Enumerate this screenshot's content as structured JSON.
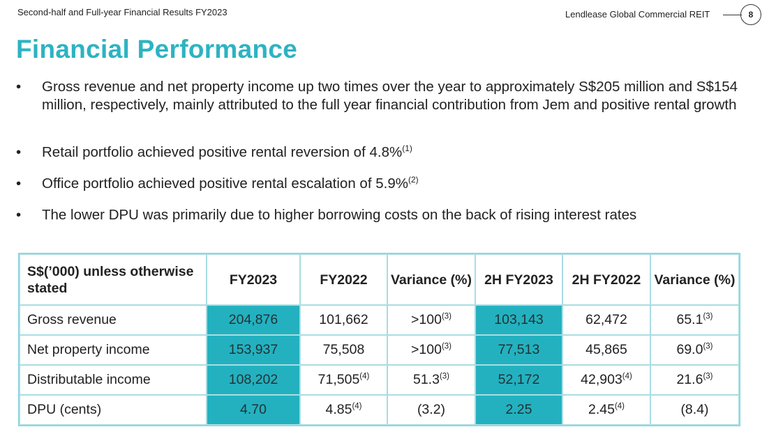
{
  "header": {
    "doc_title": "Second-half and Full-year Financial Results FY2023",
    "company": "Lendlease Global Commercial REIT",
    "page_number": "8"
  },
  "title": "Financial Performance",
  "bullets": [
    {
      "text": "Gross revenue and net property income up two times over the year to approximately S$205 million and S$154 million, respectively, mainly attributed to the full year financial contribution from Jem and positive rental growth",
      "footnote": ""
    },
    {
      "text": "Retail portfolio achieved positive rental reversion of 4.8%",
      "footnote": "(1)"
    },
    {
      "text": "Office portfolio achieved positive rental escalation of 5.9%",
      "footnote": "(2)"
    },
    {
      "text": "The lower DPU was primarily due to higher borrowing costs on the back of rising interest rates",
      "footnote": ""
    }
  ],
  "table": {
    "headers": [
      "S$(’000) unless otherwise stated",
      "FY2023",
      "FY2022",
      "Variance (%)",
      "2H FY2023",
      "2H FY2022",
      "Variance (%)"
    ],
    "rows": [
      {
        "label": "Gross revenue",
        "cells": [
          {
            "v": "204,876",
            "fn": ""
          },
          {
            "v": "101,662",
            "fn": ""
          },
          {
            "v": ">100",
            "fn": "(3)"
          },
          {
            "v": "103,143",
            "fn": ""
          },
          {
            "v": "62,472",
            "fn": ""
          },
          {
            "v": "65.1",
            "fn": "(3)"
          }
        ]
      },
      {
        "label": "Net property income",
        "cells": [
          {
            "v": "153,937",
            "fn": ""
          },
          {
            "v": "75,508",
            "fn": ""
          },
          {
            "v": ">100",
            "fn": "(3)"
          },
          {
            "v": "77,513",
            "fn": ""
          },
          {
            "v": "45,865",
            "fn": ""
          },
          {
            "v": "69.0",
            "fn": "(3)"
          }
        ]
      },
      {
        "label": "Distributable income",
        "cells": [
          {
            "v": "108,202",
            "fn": ""
          },
          {
            "v": "71,505",
            "fn": "(4)"
          },
          {
            "v": "51.3",
            "fn": "(3)"
          },
          {
            "v": "52,172",
            "fn": ""
          },
          {
            "v": "42,903",
            "fn": "(4)"
          },
          {
            "v": "21.6",
            "fn": "(3)"
          }
        ]
      },
      {
        "label": "DPU (cents)",
        "cells": [
          {
            "v": "4.70",
            "fn": ""
          },
          {
            "v": "4.85",
            "fn": "(4)"
          },
          {
            "v": "(3.2)",
            "fn": ""
          },
          {
            "v": "2.25",
            "fn": ""
          },
          {
            "v": "2.45",
            "fn": "(4)"
          },
          {
            "v": "(8.4)",
            "fn": ""
          }
        ]
      }
    ]
  },
  "colors": {
    "title": "#2db3c2",
    "highlight_column": "#23b1c0",
    "table_border": "#a8dde3"
  }
}
